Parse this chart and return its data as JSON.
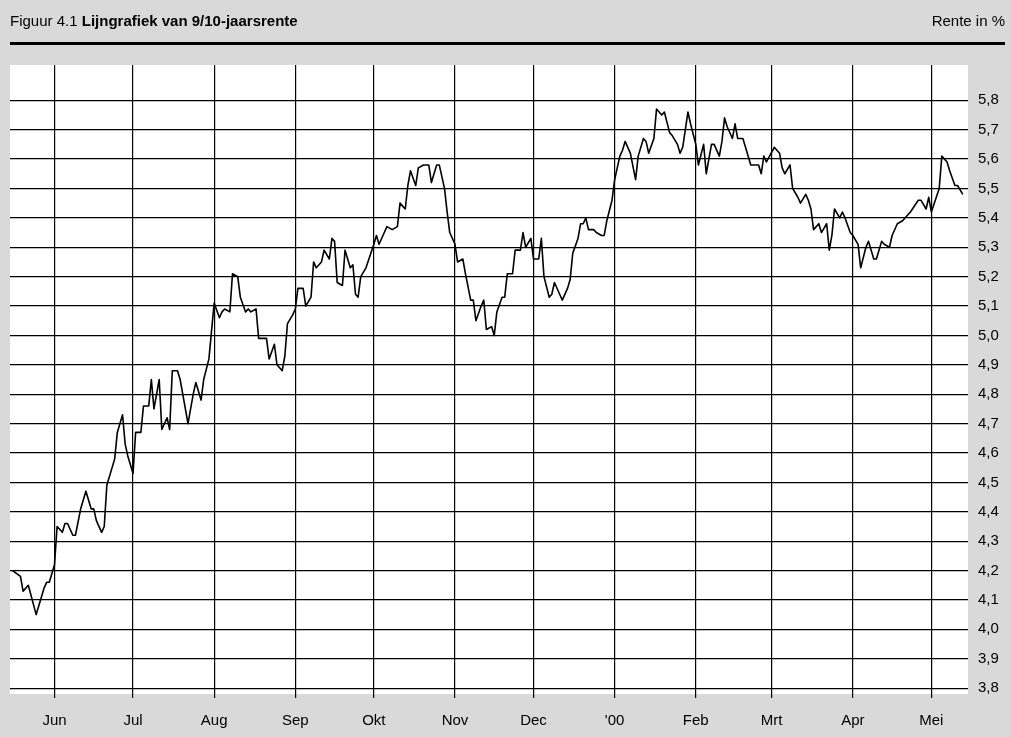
{
  "chart_data": {
    "type": "line",
    "title": "Figuur 4.1 Lijngrafiek van 9/10-jaarsrente",
    "ylabel": "Rente in %",
    "x": [
      "1999-05-16",
      "1999-05-19",
      "1999-05-20",
      "1999-05-22",
      "1999-05-25",
      "1999-05-26",
      "1999-05-28",
      "1999-05-29",
      "1999-05-30",
      "1999-06-01",
      "1999-06-02",
      "1999-06-04",
      "1999-06-05",
      "1999-06-06",
      "1999-06-08",
      "1999-06-09",
      "1999-06-11",
      "1999-06-12",
      "1999-06-13",
      "1999-06-15",
      "1999-06-16",
      "1999-06-17",
      "1999-06-19",
      "1999-06-20",
      "1999-06-21",
      "1999-06-24",
      "1999-06-25",
      "1999-06-27",
      "1999-06-28",
      "1999-06-29",
      "1999-07-01",
      "1999-07-02",
      "1999-07-04",
      "1999-07-05",
      "1999-07-07",
      "1999-07-08",
      "1999-07-09",
      "1999-07-11",
      "1999-07-12",
      "1999-07-14",
      "1999-07-15",
      "1999-07-16",
      "1999-07-18",
      "1999-07-19",
      "1999-07-21",
      "1999-07-22",
      "1999-07-24",
      "1999-07-25",
      "1999-07-27",
      "1999-07-28",
      "1999-07-30",
      "1999-08-01",
      "1999-08-03",
      "1999-08-04",
      "1999-08-05",
      "1999-08-07",
      "1999-08-08",
      "1999-08-10",
      "1999-08-11",
      "1999-08-13",
      "1999-08-14",
      "1999-08-15",
      "1999-08-17",
      "1999-08-18",
      "1999-08-19",
      "1999-08-21",
      "1999-08-22",
      "1999-08-24",
      "1999-08-25",
      "1999-08-27",
      "1999-08-28",
      "1999-08-29",
      "1999-08-31",
      "1999-09-01",
      "1999-09-02",
      "1999-09-04",
      "1999-09-05",
      "1999-09-07",
      "1999-09-08",
      "1999-09-09",
      "1999-09-11",
      "1999-09-12",
      "1999-09-14",
      "1999-09-15",
      "1999-09-16",
      "1999-09-17",
      "1999-09-19",
      "1999-09-20",
      "1999-09-22",
      "1999-09-23",
      "1999-09-24",
      "1999-09-25",
      "1999-09-26",
      "1999-09-28",
      "1999-10-01",
      "1999-10-02",
      "1999-10-03",
      "1999-10-05",
      "1999-10-06",
      "1999-10-08",
      "1999-10-10",
      "1999-10-11",
      "1999-10-13",
      "1999-10-14",
      "1999-10-15",
      "1999-10-17",
      "1999-10-18",
      "1999-10-20",
      "1999-10-22",
      "1999-10-23",
      "1999-10-25",
      "1999-10-26",
      "1999-10-28",
      "1999-10-29",
      "1999-10-30",
      "1999-11-01",
      "1999-11-02",
      "1999-11-04",
      "1999-11-05",
      "1999-11-07",
      "1999-11-08",
      "1999-11-09",
      "1999-11-11",
      "1999-11-12",
      "1999-11-13",
      "1999-11-15",
      "1999-11-16",
      "1999-11-17",
      "1999-11-19",
      "1999-11-20",
      "1999-11-21",
      "1999-11-23",
      "1999-11-24",
      "1999-11-26",
      "1999-11-27",
      "1999-11-28",
      "1999-11-30",
      "1999-12-01",
      "1999-12-03",
      "1999-12-04",
      "1999-12-05",
      "1999-12-07",
      "1999-12-08",
      "1999-12-09",
      "1999-12-11",
      "1999-12-12",
      "1999-12-14",
      "1999-12-15",
      "1999-12-16",
      "1999-12-18",
      "1999-12-19",
      "1999-12-20",
      "1999-12-21",
      "1999-12-22",
      "1999-12-24",
      "1999-12-25",
      "1999-12-27",
      "1999-12-28",
      "1999-12-29",
      "1999-12-31",
      "2000-01-01",
      "2000-01-03",
      "2000-01-04",
      "2000-01-05",
      "2000-01-07",
      "2000-01-09",
      "2000-01-10",
      "2000-01-12",
      "2000-01-13",
      "2000-01-14",
      "2000-01-16",
      "2000-01-17",
      "2000-01-19",
      "2000-01-20",
      "2000-01-22",
      "2000-01-23",
      "2000-01-25",
      "2000-01-26",
      "2000-01-27",
      "2000-01-29",
      "2000-01-30",
      "2000-02-01",
      "2000-02-02",
      "2000-02-04",
      "2000-02-05",
      "2000-02-07",
      "2000-02-08",
      "2000-02-10",
      "2000-02-11",
      "2000-02-12",
      "2000-02-13",
      "2000-02-15",
      "2000-02-16",
      "2000-02-17",
      "2000-02-19",
      "2000-02-20",
      "2000-02-22",
      "2000-02-23",
      "2000-02-25",
      "2000-02-26",
      "2000-02-27",
      "2000-02-28",
      "2000-03-02",
      "2000-03-04",
      "2000-03-05",
      "2000-03-06",
      "2000-03-08",
      "2000-03-09",
      "2000-03-11",
      "2000-03-12",
      "2000-03-14",
      "2000-03-15",
      "2000-03-16",
      "2000-03-17",
      "2000-03-19",
      "2000-03-20",
      "2000-03-22",
      "2000-03-23",
      "2000-03-24",
      "2000-03-25",
      "2000-03-27",
      "2000-03-28",
      "2000-03-29",
      "2000-03-31",
      "2000-04-01",
      "2000-04-03",
      "2000-04-04",
      "2000-04-06",
      "2000-04-07",
      "2000-04-09",
      "2000-04-10",
      "2000-04-12",
      "2000-04-13",
      "2000-04-15",
      "2000-04-16",
      "2000-04-18",
      "2000-04-20",
      "2000-04-21",
      "2000-04-23",
      "2000-04-26",
      "2000-04-27",
      "2000-04-29",
      "2000-04-30",
      "2000-05-01",
      "2000-05-04",
      "2000-05-05",
      "2000-05-07",
      "2000-05-08",
      "2000-05-10",
      "2000-05-11",
      "2000-05-13"
    ],
    "series": [
      {
        "color": "#000000",
        "values": [
          4.2,
          4.18,
          4.13,
          4.15,
          4.05,
          4.08,
          4.14,
          4.16,
          4.16,
          4.22,
          4.35,
          4.33,
          4.36,
          4.36,
          4.32,
          4.32,
          4.41,
          4.44,
          4.47,
          4.41,
          4.41,
          4.37,
          4.33,
          4.35,
          4.49,
          4.58,
          4.67,
          4.73,
          4.63,
          4.59,
          4.53,
          4.67,
          4.67,
          4.76,
          4.76,
          4.85,
          4.75,
          4.85,
          4.68,
          4.72,
          4.68,
          4.88,
          4.88,
          4.85,
          4.75,
          4.7,
          4.8,
          4.84,
          4.78,
          4.85,
          4.92,
          5.11,
          5.06,
          5.08,
          5.09,
          5.08,
          5.21,
          5.2,
          5.13,
          5.08,
          5.09,
          5.08,
          5.09,
          4.99,
          4.99,
          4.99,
          4.92,
          4.97,
          4.9,
          4.88,
          4.93,
          5.04,
          5.07,
          5.09,
          5.16,
          5.16,
          5.1,
          5.13,
          5.25,
          5.23,
          5.25,
          5.29,
          5.26,
          5.33,
          5.32,
          5.18,
          5.17,
          5.29,
          5.23,
          5.24,
          5.14,
          5.13,
          5.2,
          5.23,
          5.31,
          5.34,
          5.31,
          5.35,
          5.37,
          5.36,
          5.37,
          5.45,
          5.43,
          5.51,
          5.56,
          5.51,
          5.57,
          5.58,
          5.58,
          5.52,
          5.58,
          5.58,
          5.5,
          5.42,
          5.35,
          5.31,
          5.25,
          5.26,
          5.21,
          5.12,
          5.12,
          5.05,
          5.1,
          5.12,
          5.02,
          5.03,
          5.0,
          5.08,
          5.13,
          5.13,
          5.21,
          5.21,
          5.29,
          5.29,
          5.35,
          5.3,
          5.33,
          5.26,
          5.26,
          5.33,
          5.2,
          5.13,
          5.14,
          5.18,
          5.14,
          5.12,
          5.16,
          5.19,
          5.28,
          5.33,
          5.38,
          5.38,
          5.4,
          5.36,
          5.36,
          5.35,
          5.34,
          5.34,
          5.39,
          5.46,
          5.53,
          5.61,
          5.63,
          5.66,
          5.62,
          5.53,
          5.61,
          5.67,
          5.66,
          5.62,
          5.67,
          5.77,
          5.75,
          5.76,
          5.69,
          5.68,
          5.65,
          5.62,
          5.64,
          5.76,
          5.72,
          5.65,
          5.58,
          5.65,
          5.55,
          5.65,
          5.65,
          5.61,
          5.66,
          5.74,
          5.71,
          5.67,
          5.72,
          5.67,
          5.67,
          5.64,
          5.58,
          5.58,
          5.58,
          5.55,
          5.61,
          5.59,
          5.64,
          5.62,
          5.57,
          5.55,
          5.58,
          5.5,
          5.47,
          5.45,
          5.48,
          5.46,
          5.43,
          5.36,
          5.38,
          5.35,
          5.38,
          5.29,
          5.34,
          5.43,
          5.4,
          5.42,
          5.4,
          5.35,
          5.34,
          5.31,
          5.23,
          5.3,
          5.32,
          5.26,
          5.26,
          5.32,
          5.31,
          5.3,
          5.34,
          5.38,
          5.39,
          5.4,
          5.42,
          5.46,
          5.46,
          5.43,
          5.47,
          5.42,
          5.5,
          5.61,
          5.59,
          5.56,
          5.51,
          5.51,
          5.48
        ]
      }
    ],
    "xlim": [
      "1999-05-15",
      "2000-05-15"
    ],
    "xticks": [
      {
        "value": "1999-06-01",
        "label": "Jun"
      },
      {
        "value": "1999-07-01",
        "label": "Jul"
      },
      {
        "value": "1999-08-01",
        "label": "Aug"
      },
      {
        "value": "1999-09-01",
        "label": "Sep"
      },
      {
        "value": "1999-10-01",
        "label": "Okt"
      },
      {
        "value": "1999-11-01",
        "label": "Nov"
      },
      {
        "value": "1999-12-01",
        "label": "Dec"
      },
      {
        "value": "2000-01-01",
        "label": "'00"
      },
      {
        "value": "2000-02-01",
        "label": "Feb"
      },
      {
        "value": "2000-03-01",
        "label": "Mrt"
      },
      {
        "value": "2000-04-01",
        "label": "Apr"
      },
      {
        "value": "2000-05-01",
        "label": "Mei"
      }
    ],
    "ylim": [
      3.78,
      5.92
    ],
    "yticks": [
      {
        "value": 3.8,
        "label": "3,8"
      },
      {
        "value": 3.9,
        "label": "3,9"
      },
      {
        "value": 4.0,
        "label": "4,0"
      },
      {
        "value": 4.1,
        "label": "4,1"
      },
      {
        "value": 4.2,
        "label": "4,2"
      },
      {
        "value": 4.3,
        "label": "4,3"
      },
      {
        "value": 4.4,
        "label": "4,4"
      },
      {
        "value": 4.5,
        "label": "4,5"
      },
      {
        "value": 4.6,
        "label": "4,6"
      },
      {
        "value": 4.7,
        "label": "4,7"
      },
      {
        "value": 4.8,
        "label": "4,8"
      },
      {
        "value": 4.9,
        "label": "4,9"
      },
      {
        "value": 5.0,
        "label": "5,0"
      },
      {
        "value": 5.1,
        "label": "5,1"
      },
      {
        "value": 5.2,
        "label": "5,2"
      },
      {
        "value": 5.3,
        "label": "5,3"
      },
      {
        "value": 5.4,
        "label": "5,4"
      },
      {
        "value": 5.5,
        "label": "5,5"
      },
      {
        "value": 5.6,
        "label": "5,6"
      },
      {
        "value": 5.7,
        "label": "5,7"
      },
      {
        "value": 5.8,
        "label": "5,8"
      }
    ],
    "grid": true,
    "marker": "none",
    "line_style": "solid"
  }
}
